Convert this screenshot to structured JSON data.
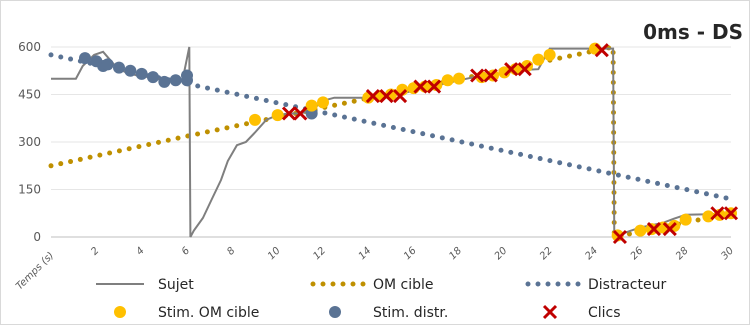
{
  "chart_data": {
    "type": "line",
    "title": "0ms - DS",
    "xlabel": "Temps (s)",
    "ylabel": "",
    "xlim": [
      0,
      30
    ],
    "ylim": [
      0,
      600
    ],
    "x_ticks": [
      "2",
      "4",
      "6",
      "8",
      "10",
      "12",
      "14",
      "16",
      "18",
      "20",
      "22",
      "24",
      "26",
      "28",
      "30"
    ],
    "y_ticks": [
      "0",
      "150",
      "300",
      "450",
      "600"
    ],
    "grid": "horizontal",
    "legend_position": "bottom",
    "colors": {
      "sujet": "#7f7f7f",
      "om": "#bf9000",
      "distracteur": "#5a7394",
      "stim_om": "#ffc000",
      "stim_distr": "#5a7394",
      "clics": "#c00000"
    },
    "series": [
      {
        "name": "Sujet",
        "style": "line",
        "points": [
          [
            0,
            500
          ],
          [
            1.1,
            500
          ],
          [
            1.4,
            540
          ],
          [
            1.9,
            575
          ],
          [
            2.3,
            585
          ],
          [
            2.6,
            560
          ],
          [
            2.9,
            535
          ],
          [
            3.3,
            520
          ],
          [
            3.8,
            510
          ],
          [
            4.3,
            505
          ],
          [
            4.8,
            498
          ],
          [
            5.3,
            495
          ],
          [
            5.8,
            495
          ],
          [
            6.1,
            600
          ],
          [
            6.15,
            0
          ],
          [
            6.3,
            20
          ],
          [
            6.7,
            60
          ],
          [
            7.1,
            120
          ],
          [
            7.5,
            180
          ],
          [
            7.8,
            240
          ],
          [
            8.2,
            290
          ],
          [
            8.6,
            300
          ],
          [
            9.0,
            330
          ],
          [
            9.5,
            370
          ],
          [
            10.0,
            385
          ],
          [
            10.5,
            390
          ],
          [
            11.0,
            390
          ],
          [
            11.5,
            400
          ],
          [
            12.0,
            430
          ],
          [
            12.5,
            440
          ],
          [
            13.0,
            440
          ],
          [
            13.5,
            440
          ],
          [
            14.0,
            440
          ],
          [
            15.0,
            445
          ],
          [
            16.0,
            462
          ],
          [
            17.0,
            480
          ],
          [
            18.0,
            495
          ],
          [
            19.0,
            510
          ],
          [
            20.0,
            518
          ],
          [
            21.0,
            528
          ],
          [
            21.5,
            530
          ],
          [
            22.0,
            595
          ],
          [
            24.8,
            595
          ],
          [
            24.85,
            0
          ],
          [
            25.0,
            5
          ],
          [
            25.5,
            18
          ],
          [
            26.0,
            30
          ],
          [
            27.0,
            45
          ],
          [
            27.5,
            58
          ],
          [
            28.0,
            70
          ],
          [
            29.0,
            72
          ],
          [
            30.0,
            75
          ]
        ]
      },
      {
        "name": "OM cible",
        "style": "dotted",
        "points": [
          [
            0,
            225
          ],
          [
            6.1,
            320
          ],
          [
            24.8,
            600
          ],
          [
            24.85,
            0
          ],
          [
            30,
            75
          ]
        ]
      },
      {
        "name": "Distracteur",
        "style": "dotted",
        "points": [
          [
            0,
            575
          ],
          [
            30,
            120
          ]
        ]
      },
      {
        "name": "Stim. OM cible",
        "style": "markers",
        "points": [
          [
            9.0,
            370
          ],
          [
            10.0,
            385
          ],
          [
            11.5,
            415
          ],
          [
            12.0,
            425
          ],
          [
            14.0,
            440
          ],
          [
            14.5,
            445
          ],
          [
            15.0,
            450
          ],
          [
            15.5,
            465
          ],
          [
            16.0,
            470
          ],
          [
            16.5,
            475
          ],
          [
            17.0,
            480
          ],
          [
            17.5,
            495
          ],
          [
            18.0,
            500
          ],
          [
            19.0,
            505
          ],
          [
            19.5,
            510
          ],
          [
            20.0,
            520
          ],
          [
            20.5,
            530
          ],
          [
            21.0,
            540
          ],
          [
            21.5,
            560
          ],
          [
            22.0,
            575
          ],
          [
            24.0,
            595
          ],
          [
            25.0,
            5
          ],
          [
            26.0,
            20
          ],
          [
            26.5,
            25
          ],
          [
            27.0,
            30
          ],
          [
            27.5,
            35
          ],
          [
            28.0,
            55
          ],
          [
            29.0,
            65
          ],
          [
            29.5,
            70
          ],
          [
            30.0,
            75
          ]
        ]
      },
      {
        "name": "Stim. distr.",
        "style": "markers",
        "points": [
          [
            1.5,
            565
          ],
          [
            2.0,
            555
          ],
          [
            2.3,
            540
          ],
          [
            2.5,
            545
          ],
          [
            3.0,
            535
          ],
          [
            3.5,
            525
          ],
          [
            4.0,
            515
          ],
          [
            4.5,
            505
          ],
          [
            5.0,
            490
          ],
          [
            5.5,
            495
          ],
          [
            6.0,
            495
          ],
          [
            6.0,
            510
          ],
          [
            11.5,
            390
          ]
        ]
      },
      {
        "name": "Clics",
        "style": "x",
        "points": [
          [
            10.5,
            390
          ],
          [
            11.0,
            390
          ],
          [
            14.2,
            445
          ],
          [
            14.8,
            445
          ],
          [
            15.4,
            445
          ],
          [
            16.3,
            475
          ],
          [
            16.9,
            475
          ],
          [
            18.8,
            510
          ],
          [
            19.4,
            510
          ],
          [
            20.3,
            530
          ],
          [
            20.9,
            530
          ],
          [
            24.3,
            590
          ],
          [
            25.1,
            0
          ],
          [
            26.6,
            25
          ],
          [
            27.3,
            25
          ],
          [
            29.4,
            75
          ],
          [
            30.0,
            75
          ]
        ]
      }
    ],
    "legend": [
      "Sujet",
      "OM cible",
      "Distracteur",
      "Stim. OM cible",
      "Stim. distr.",
      "Clics"
    ]
  }
}
